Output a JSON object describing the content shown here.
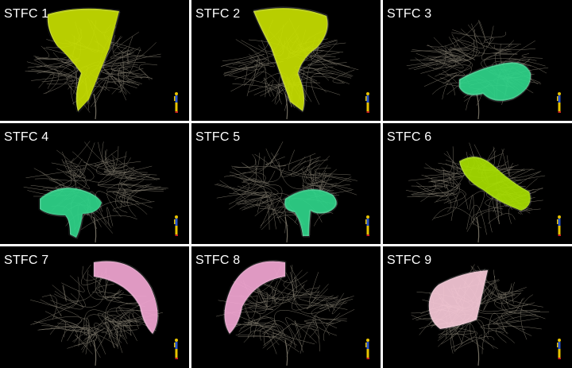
{
  "panels": [
    {
      "label": "STFC 1",
      "tract_color": "#c8e000",
      "tract": "vertical-left"
    },
    {
      "label": "STFC 2",
      "tract_color": "#c8e000",
      "tract": "vertical-right"
    },
    {
      "label": "STFC 3",
      "tract_color": "#2fd58a",
      "tract": "temporal-right"
    },
    {
      "label": "STFC 4",
      "tract_color": "#2fd58a",
      "tract": "temporal-left"
    },
    {
      "label": "STFC 5",
      "tract_color": "#2fd58a",
      "tract": "temporal-center"
    },
    {
      "label": "STFC 6",
      "tract_color": "#a8e000",
      "tract": "diagonal-band"
    },
    {
      "label": "STFC 7",
      "tract_color": "#f2a6d2",
      "tract": "arc-right"
    },
    {
      "label": "STFC 8",
      "tract_color": "#f2a6d2",
      "tract": "arc-left"
    },
    {
      "label": "STFC 9",
      "tract_color": "#f7c9d8",
      "tract": "fan-left"
    }
  ],
  "colors": {
    "background": "#000000",
    "fibers": "#cfc6b0",
    "figure_head": "#e8c400",
    "figure_body": "#2a55c8",
    "figure_legs": "#e8c400",
    "figure_feet": "#cc2222"
  }
}
